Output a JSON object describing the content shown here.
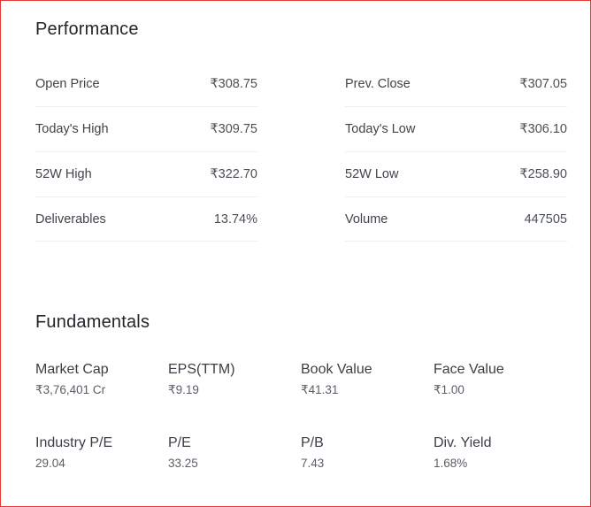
{
  "performance": {
    "title": "Performance",
    "left": [
      {
        "label": "Open Price",
        "value": "₹308.75"
      },
      {
        "label": "Today's High",
        "value": "₹309.75"
      },
      {
        "label": "52W High",
        "value": "₹322.70"
      },
      {
        "label": "Deliverables",
        "value": "13.74%"
      }
    ],
    "right": [
      {
        "label": "Prev. Close",
        "value": "₹307.05"
      },
      {
        "label": "Today's Low",
        "value": "₹306.10"
      },
      {
        "label": "52W Low",
        "value": "₹258.90"
      },
      {
        "label": "Volume",
        "value": "447505"
      }
    ]
  },
  "fundamentals": {
    "title": "Fundamentals",
    "items": [
      {
        "label": "Market Cap",
        "value": "₹3,76,401 Cr"
      },
      {
        "label": "EPS(TTM)",
        "value": "₹9.19"
      },
      {
        "label": "Book Value",
        "value": "₹41.31"
      },
      {
        "label": "Face Value",
        "value": "₹1.00"
      },
      {
        "label": "Industry P/E",
        "value": "29.04"
      },
      {
        "label": "P/E",
        "value": "33.25"
      },
      {
        "label": "P/B",
        "value": "7.43"
      },
      {
        "label": "Div. Yield",
        "value": "1.68%"
      }
    ]
  }
}
